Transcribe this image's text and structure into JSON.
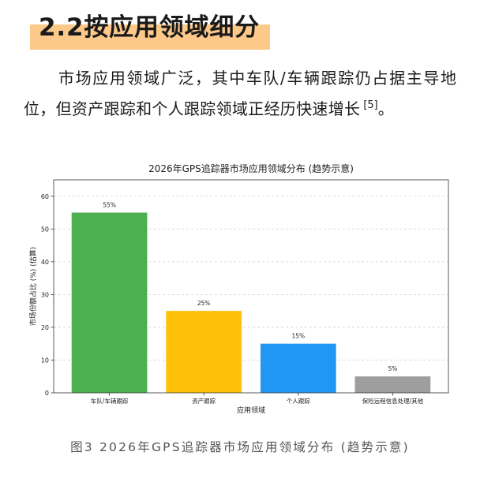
{
  "heading": {
    "title": "2.2按应用领域细分",
    "highlight_color": "#FDC98A"
  },
  "paragraph": {
    "line1": "市场应用领域广泛，其中车队/车辆跟踪仍占据主导地",
    "line2": "位，但资产跟踪和个人跟踪领域正经历快速增长",
    "citation": "[5]",
    "line2_end": "。"
  },
  "figure": {
    "caption": "图3 2026年GPS追踪器市场应用领域分布 (趋势示意)"
  },
  "chart_data": {
    "type": "bar",
    "title": "2026年GPS追踪器市场应用领域分布 (趋势示意)",
    "xlabel": "应用领域",
    "ylabel": "市场份额占比 (%) (估算)",
    "categories": [
      "车队/车辆跟踪",
      "资产跟踪",
      "个人跟踪",
      "保险远程信息处理/其他"
    ],
    "values": [
      55,
      25,
      15,
      5
    ],
    "value_labels": [
      "55%",
      "25%",
      "15%",
      "5%"
    ],
    "colors": [
      "#4CAF50",
      "#FFC107",
      "#2196F3",
      "#9E9E9E"
    ],
    "ylim": [
      0,
      65
    ],
    "yticks": [
      0,
      10,
      20,
      30,
      40,
      50,
      60
    ],
    "grid": true
  }
}
